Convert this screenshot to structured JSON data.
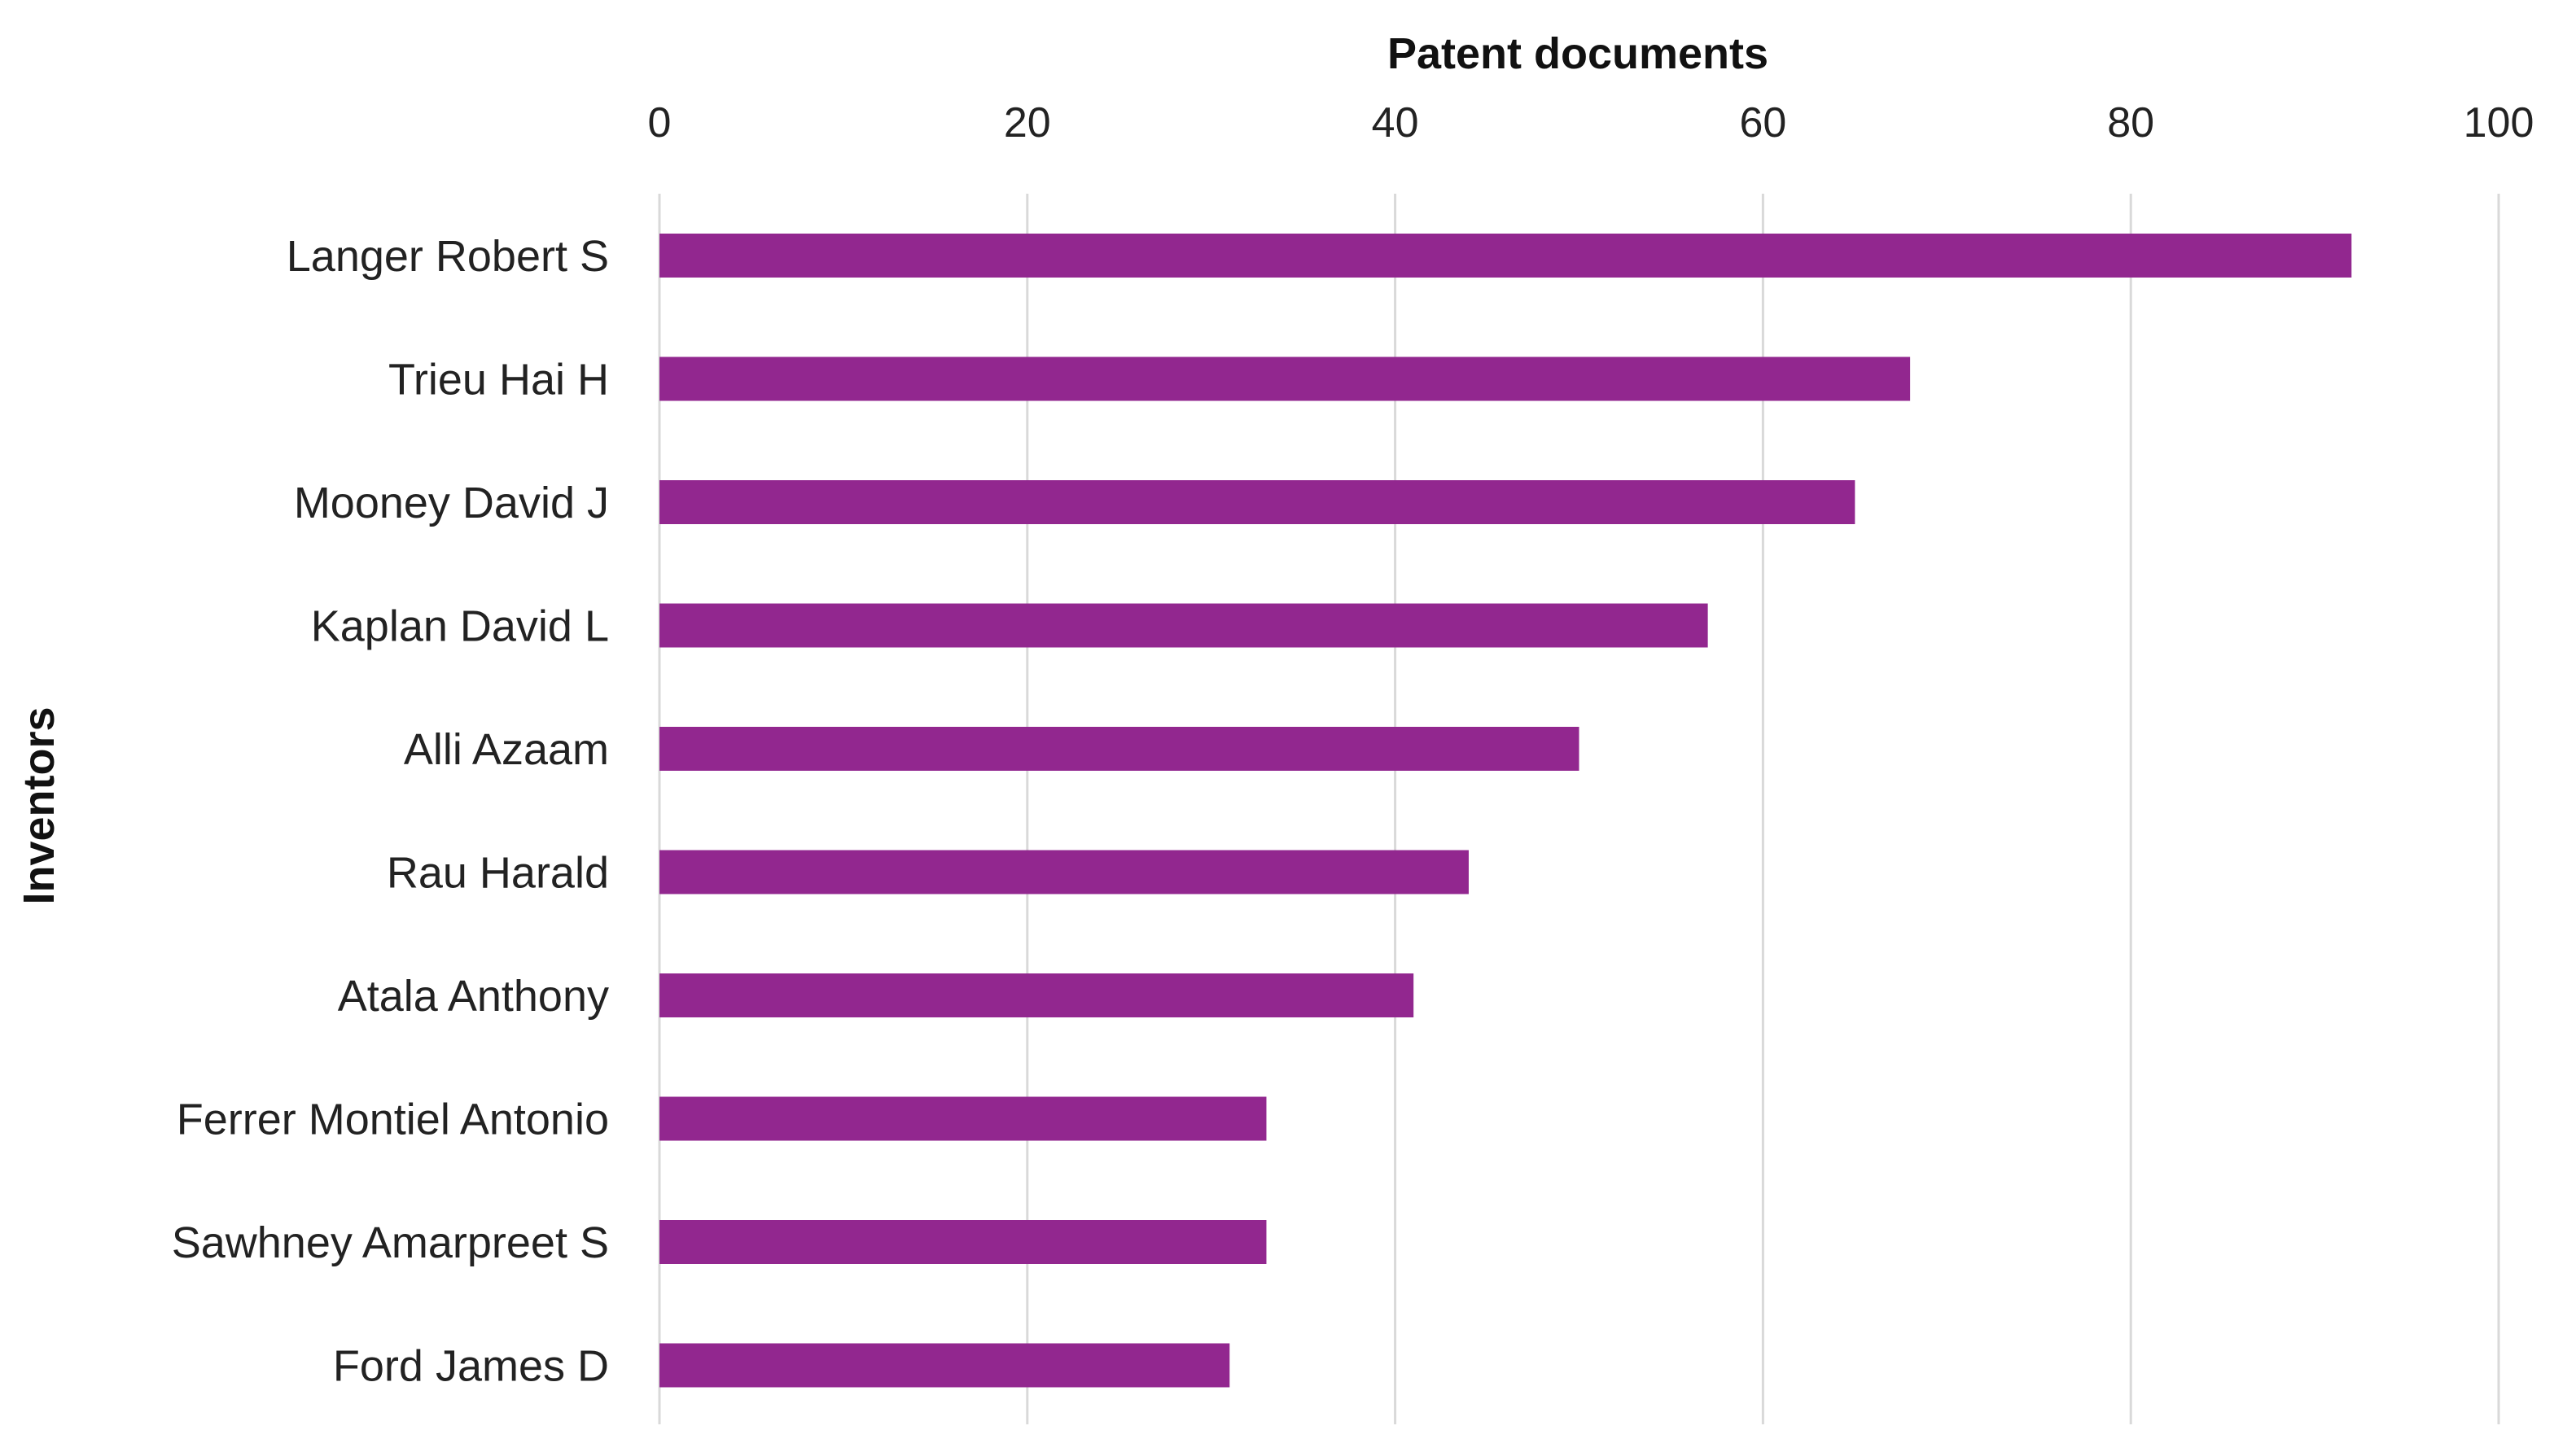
{
  "chart_data": {
    "type": "bar",
    "orientation": "horizontal",
    "xlabel": "Patent documents",
    "ylabel": "Inventors",
    "xlim": [
      0,
      100
    ],
    "xticks": [
      0,
      20,
      40,
      60,
      80,
      100
    ],
    "x_axis_position": "top",
    "grid": true,
    "bar_color": "#92278F",
    "grid_color": "#d9d9d9",
    "categories": [
      "Langer Robert S",
      "Trieu Hai H",
      "Mooney David J",
      "Kaplan David L",
      "Alli Azaam",
      "Rau Harald",
      "Atala Anthony",
      "Ferrer Montiel Antonio",
      "Sawhney Amarpreet S",
      "Ford James D"
    ],
    "values": [
      92,
      68,
      65,
      57,
      50,
      44,
      41,
      33,
      33,
      31
    ]
  }
}
